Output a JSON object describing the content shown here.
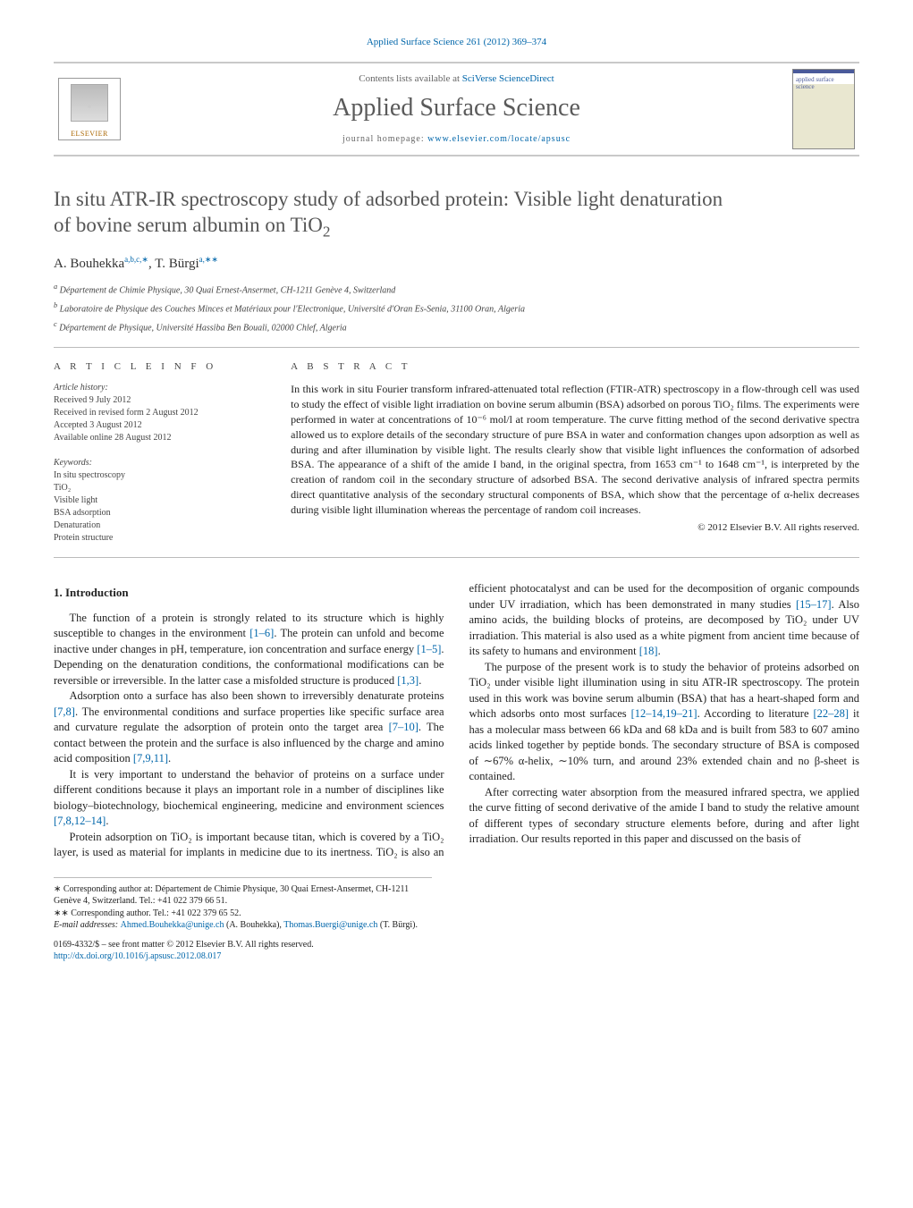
{
  "journal_ref": "Applied Surface Science 261 (2012) 369–374",
  "masthead": {
    "contents_prefix": "Contents lists available at ",
    "contents_link": "SciVerse ScienceDirect",
    "journal_name": "Applied Surface Science",
    "homepage_prefix": "journal homepage: ",
    "homepage_link": "www.elsevier.com/locate/apsusc",
    "publisher_logo_label": "ELSEVIER",
    "cover_label": "applied surface science"
  },
  "title_line1": "In situ ATR-IR spectroscopy study of adsorbed protein: Visible light denaturation",
  "title_line2": "of bovine serum albumin on TiO",
  "title_sub": "2",
  "authors": {
    "name1": "A. Bouhekka",
    "aff1": "a,b,c,",
    "star1": "∗",
    "sep": ", ",
    "name2": "T. Bürgi",
    "aff2": "a,",
    "star2": "∗∗"
  },
  "affiliations": {
    "a": "Département de Chimie Physique, 30 Quai Ernest-Ansermet, CH-1211 Genève 4, Switzerland",
    "b": "Laboratoire de Physique des Couches Minces et Matériaux pour l'Electronique, Université d'Oran Es-Senia, 31100 Oran, Algeria",
    "c": "Département de Physique, Université Hassiba Ben Bouali, 02000 Chlef, Algeria"
  },
  "info_heading": "a r t i c l e   i n f o",
  "abstract_heading": "a b s t r a c t",
  "history_label": "Article history:",
  "history": {
    "received": "Received 9 July 2012",
    "revised": "Received in revised form 2 August 2012",
    "accepted": "Accepted 3 August 2012",
    "online": "Available online 28 August 2012"
  },
  "keywords_label": "Keywords:",
  "keywords": [
    "In situ spectroscopy",
    "TiO₂",
    "Visible light",
    "BSA adsorption",
    "Denaturation",
    "Protein structure"
  ],
  "abstract": "In this work in situ Fourier transform infrared-attenuated total reflection (FTIR-ATR) spectroscopy in a flow-through cell was used to study the effect of visible light irradiation on bovine serum albumin (BSA) adsorbed on porous TiO₂ films. The experiments were performed in water at concentrations of 10⁻⁶ mol/l at room temperature. The curve fitting method of the second derivative spectra allowed us to explore details of the secondary structure of pure BSA in water and conformation changes upon adsorption as well as during and after illumination by visible light. The results clearly show that visible light influences the conformation of adsorbed BSA. The appearance of a shift of the amide I band, in the original spectra, from 1653 cm⁻¹ to 1648 cm⁻¹, is interpreted by the creation of random coil in the secondary structure of adsorbed BSA. The second derivative analysis of infrared spectra permits direct quantitative analysis of the secondary structural components of BSA, which show that the percentage of α-helix decreases during visible light illumination whereas the percentage of random coil increases.",
  "copyright": "© 2012 Elsevier B.V. All rights reserved.",
  "section1_heading": "1.  Introduction",
  "paragraphs": {
    "p1a": "The function of a protein is strongly related to its structure which is highly susceptible to changes in the environment ",
    "p1_ref1": "[1–6]",
    "p1b": ". The protein can unfold and become inactive under changes in pH, temperature, ion concentration and surface energy ",
    "p1_ref2": "[1–5]",
    "p1c": ". Depending on the denaturation conditions, the conformational modifications can be reversible or irreversible. In the latter case a misfolded structure is produced ",
    "p1_ref3": "[1,3]",
    "p1d": ".",
    "p2a": "Adsorption onto a surface has also been shown to irreversibly denaturate proteins ",
    "p2_ref1": "[7,8]",
    "p2b": ". The environmental conditions and surface properties like specific surface area and curvature regulate the adsorption of protein onto the target area ",
    "p2_ref2": "[7–10]",
    "p2c": ". The contact between the protein and the surface is also influenced by the charge and amino acid composition ",
    "p2_ref3": "[7,9,11]",
    "p2d": ".",
    "p3a": "It is very important to understand the behavior of proteins on a surface under different conditions because it plays an important role in a number of disciplines like biology–biotechnology, biochemical engineering, medicine and environment sciences ",
    "p3_ref1": "[7,8,12–14]",
    "p3b": ".",
    "p4a": "Protein adsorption on TiO₂ is important because titan, which is covered by a TiO₂ layer, is used as material for implants in medicine due to its inertness. TiO₂ is also an efficient photocatalyst and can be used for the decomposition of organic compounds under UV irradiation, which has been demonstrated in many studies ",
    "p4_ref1": "[15–17]",
    "p4b": ". Also amino acids, the building blocks of proteins, are decomposed by TiO₂ under UV irradiation. This material is also used as a white pigment from ancient time because of its safety to humans and environment ",
    "p4_ref2": "[18]",
    "p4c": ".",
    "p5a": "The purpose of the present work is to study the behavior of proteins adsorbed on TiO₂ under visible light illumination using in situ ATR-IR spectroscopy. The protein used in this work was bovine serum albumin (BSA) that has a heart-shaped form and which adsorbs onto most surfaces ",
    "p5_ref1": "[12–14,19–21]",
    "p5b": ". According to literature ",
    "p5_ref2": "[22–28]",
    "p5c": " it has a molecular mass between 66 kDa and 68 kDa and is built from 583 to 607 amino acids linked together by peptide bonds. The secondary structure of BSA is composed of ∼67% α-helix, ∼10% turn, and around 23% extended chain and no β-sheet is contained.",
    "p6": "After correcting water absorption from the measured infrared spectra, we applied the curve fitting of second derivative of the amide I band to study the relative amount of different types of secondary structure elements before, during and after light irradiation. Our results reported in this paper and discussed on the basis of"
  },
  "footnotes": {
    "f1_label": "∗ ",
    "f1": "Corresponding author at: Département de Chimie Physique, 30 Quai Ernest-Ansermet, CH-1211 Genève 4, Switzerland. Tel.: +41 022 379 66 51.",
    "f2_label": "∗∗ ",
    "f2": "Corresponding author. Tel.: +41 022 379 65 52.",
    "email_label": "E-mail addresses: ",
    "email1": "Ahmed.Bouhekka@unige.ch",
    "email1_who": " (A. Bouhekka), ",
    "email2": "Thomas.Buergi@unige.ch",
    "email2_who": " (T. Bürgi)."
  },
  "doi": {
    "line1": "0169-4332/$ – see front matter © 2012 Elsevier B.V. All rights reserved.",
    "link": "http://dx.doi.org/10.1016/j.apsusc.2012.08.017"
  },
  "colors": {
    "link": "#0066aa",
    "title_gray": "#555555",
    "rule": "#bbbbbb"
  }
}
